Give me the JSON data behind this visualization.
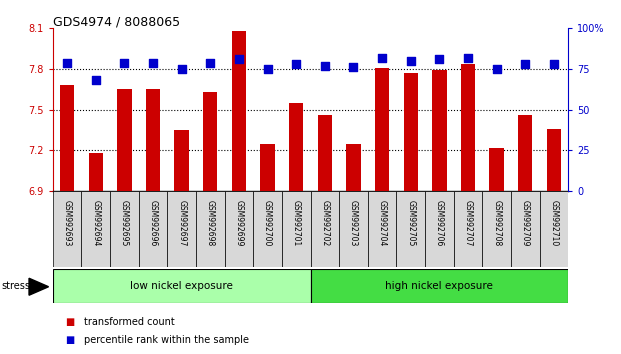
{
  "title": "GDS4974 / 8088065",
  "samples": [
    "GSM992693",
    "GSM992694",
    "GSM992695",
    "GSM992696",
    "GSM992697",
    "GSM992698",
    "GSM992699",
    "GSM992700",
    "GSM992701",
    "GSM992702",
    "GSM992703",
    "GSM992704",
    "GSM992705",
    "GSM992706",
    "GSM992707",
    "GSM992708",
    "GSM992709",
    "GSM992710"
  ],
  "transformed_count": [
    7.68,
    7.18,
    7.65,
    7.65,
    7.35,
    7.63,
    8.08,
    7.25,
    7.55,
    7.46,
    7.25,
    7.81,
    7.77,
    7.79,
    7.84,
    7.22,
    7.46,
    7.36
  ],
  "percentile_rank": [
    79,
    68,
    79,
    79,
    75,
    79,
    81,
    75,
    78,
    77,
    76,
    82,
    80,
    81,
    82,
    75,
    78,
    78
  ],
  "group_labels": [
    "low nickel exposure",
    "high nickel exposure"
  ],
  "group_split": 9,
  "group_colors": [
    "#aaffaa",
    "#44dd44"
  ],
  "ylim_left": [
    6.9,
    8.1
  ],
  "ylim_right": [
    0,
    100
  ],
  "yticks_left": [
    6.9,
    7.2,
    7.5,
    7.8,
    8.1
  ],
  "yticks_right": [
    0,
    25,
    50,
    75,
    100
  ],
  "ytick_labels_left": [
    "6.9",
    "7.2",
    "7.5",
    "7.8",
    "8.1"
  ],
  "ytick_labels_right": [
    "0",
    "25",
    "50",
    "75",
    "100%"
  ],
  "hlines": [
    7.2,
    7.5,
    7.8
  ],
  "bar_color": "#CC0000",
  "dot_color": "#0000CC",
  "bar_width": 0.5,
  "dot_size": 30,
  "stress_label": "stress",
  "legend_items": [
    {
      "color": "#CC0000",
      "label": "transformed count"
    },
    {
      "color": "#0000CC",
      "label": "percentile rank within the sample"
    }
  ]
}
